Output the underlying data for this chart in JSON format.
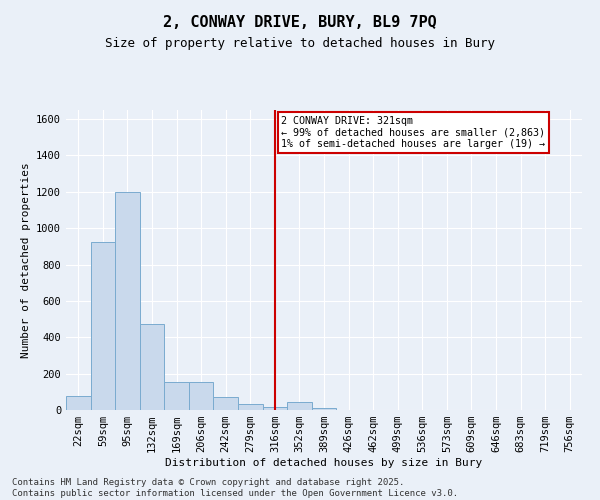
{
  "title1": "2, CONWAY DRIVE, BURY, BL9 7PQ",
  "title2": "Size of property relative to detached houses in Bury",
  "xlabel": "Distribution of detached houses by size in Bury",
  "ylabel": "Number of detached properties",
  "categories": [
    "22sqm",
    "59sqm",
    "95sqm",
    "132sqm",
    "169sqm",
    "206sqm",
    "242sqm",
    "279sqm",
    "316sqm",
    "352sqm",
    "389sqm",
    "426sqm",
    "462sqm",
    "499sqm",
    "536sqm",
    "573sqm",
    "609sqm",
    "646sqm",
    "683sqm",
    "719sqm",
    "756sqm"
  ],
  "values": [
    75,
    925,
    1200,
    475,
    155,
    155,
    70,
    35,
    18,
    42,
    12,
    0,
    0,
    0,
    0,
    0,
    0,
    0,
    0,
    0,
    0
  ],
  "bar_color": "#c9d9ec",
  "bar_edge_color": "#7aabcf",
  "vline_x_index": 8,
  "vline_color": "#cc0000",
  "annotation_text": "2 CONWAY DRIVE: 321sqm\n← 99% of detached houses are smaller (2,863)\n1% of semi-detached houses are larger (19) →",
  "annotation_box_color": "#cc0000",
  "ylim": [
    0,
    1650
  ],
  "yticks": [
    0,
    200,
    400,
    600,
    800,
    1000,
    1200,
    1400,
    1600
  ],
  "bg_color": "#eaf0f8",
  "plot_bg_color": "#eaf0f8",
  "footer1": "Contains HM Land Registry data © Crown copyright and database right 2025.",
  "footer2": "Contains public sector information licensed under the Open Government Licence v3.0.",
  "title_fontsize": 11,
  "subtitle_fontsize": 9,
  "footer_fontsize": 6.5,
  "axis_label_fontsize": 8,
  "tick_fontsize": 7.5
}
